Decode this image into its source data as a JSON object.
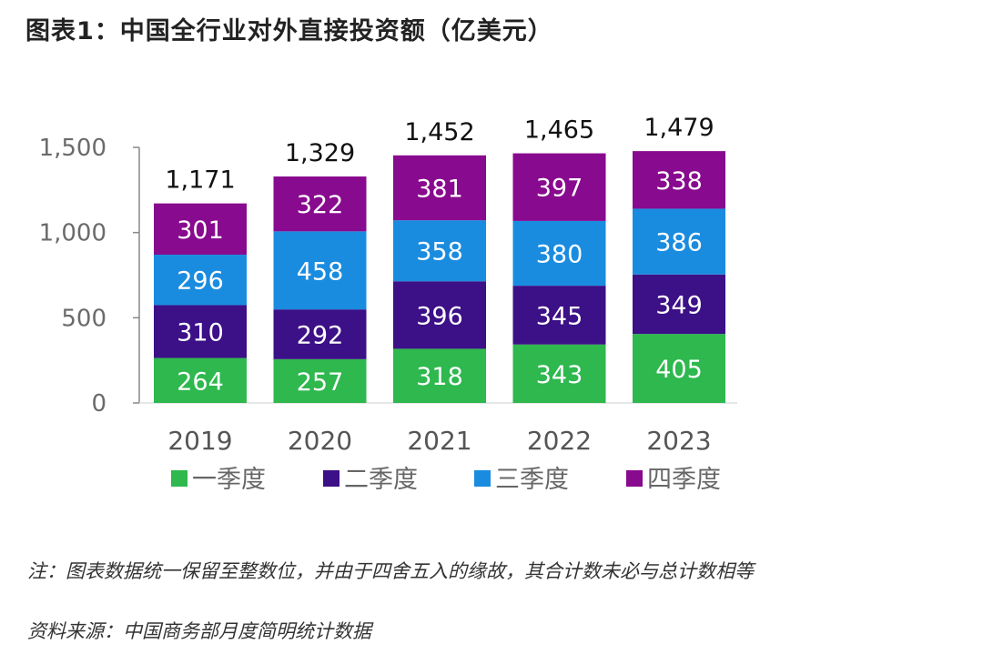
{
  "title": "图表1：中国全行业对外直接投资额（亿美元）",
  "note": "注：图表数据统一保留至整数位，并由于四舍五入的缘故，其合计数未必与总计数相等",
  "source": "资料来源：中国商务部月度简明统计数据",
  "chart_data": {
    "type": "bar",
    "stacked": true,
    "categories": [
      "2019",
      "2020",
      "2021",
      "2022",
      "2023"
    ],
    "series": [
      {
        "name": "一季度",
        "color": "#2EB84E",
        "values": [
          264,
          257,
          318,
          343,
          405
        ]
      },
      {
        "name": "二季度",
        "color": "#3C1087",
        "values": [
          310,
          292,
          396,
          345,
          349
        ]
      },
      {
        "name": "三季度",
        "color": "#1A8CE0",
        "values": [
          296,
          458,
          358,
          380,
          386
        ]
      },
      {
        "name": "四季度",
        "color": "#880A8E",
        "values": [
          301,
          322,
          381,
          397,
          338
        ]
      }
    ],
    "totals": [
      "1,171",
      "1,329",
      "1,452",
      "1,465",
      "1,479"
    ],
    "yticks": [
      "0",
      "500",
      "1,000",
      "1,500"
    ],
    "ylim": [
      0,
      1500
    ],
    "grid": false,
    "legend": "bottom"
  }
}
